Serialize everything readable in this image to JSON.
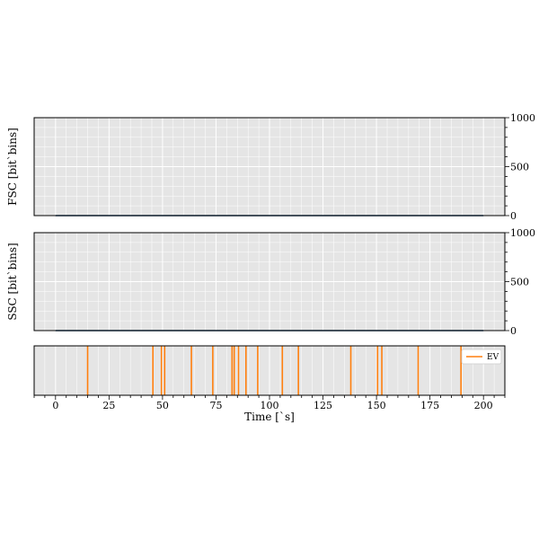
{
  "chart_data": [
    {
      "type": "line",
      "ylabel": "FSC [bit`bins]",
      "xlim": [
        -10,
        210
      ],
      "ylim": [
        0,
        1000
      ],
      "yticks": [
        0,
        500,
        1000
      ],
      "ytick_labels": [
        "0",
        "500",
        "1000"
      ],
      "y_axis_side": "right",
      "grid": true,
      "series": [
        {
          "x": [
            0,
            200
          ],
          "y": [
            0,
            0
          ],
          "color": "#1f4e79"
        }
      ]
    },
    {
      "type": "line",
      "ylabel": "SSC [bit`bins]",
      "xlim": [
        -10,
        210
      ],
      "ylim": [
        0,
        1000
      ],
      "yticks": [
        0,
        500,
        1000
      ],
      "ytick_labels": [
        "0",
        "500",
        "1000"
      ],
      "y_axis_side": "right",
      "grid": true,
      "series": [
        {
          "x": [
            0,
            200
          ],
          "y": [
            0,
            0
          ],
          "color": "#1f4e79"
        }
      ]
    },
    {
      "type": "event",
      "xlabel": "Time [`s]",
      "xlim": [
        -10,
        210
      ],
      "xticks": [
        0,
        25,
        50,
        75,
        100,
        125,
        150,
        175,
        200
      ],
      "xtick_labels": [
        "0",
        "25",
        "50",
        "75",
        "100",
        "125",
        "150",
        "175",
        "200"
      ],
      "grid": true,
      "legend": {
        "label": "EV",
        "placement": "top-right"
      },
      "events_color": "#ff7f0e",
      "events": [
        15,
        45.5,
        49.5,
        51,
        63.5,
        73.5,
        82.5,
        83.5,
        85.5,
        89,
        94.5,
        106,
        113.5,
        138,
        150.5,
        152.5,
        169.5,
        189.5
      ]
    }
  ]
}
